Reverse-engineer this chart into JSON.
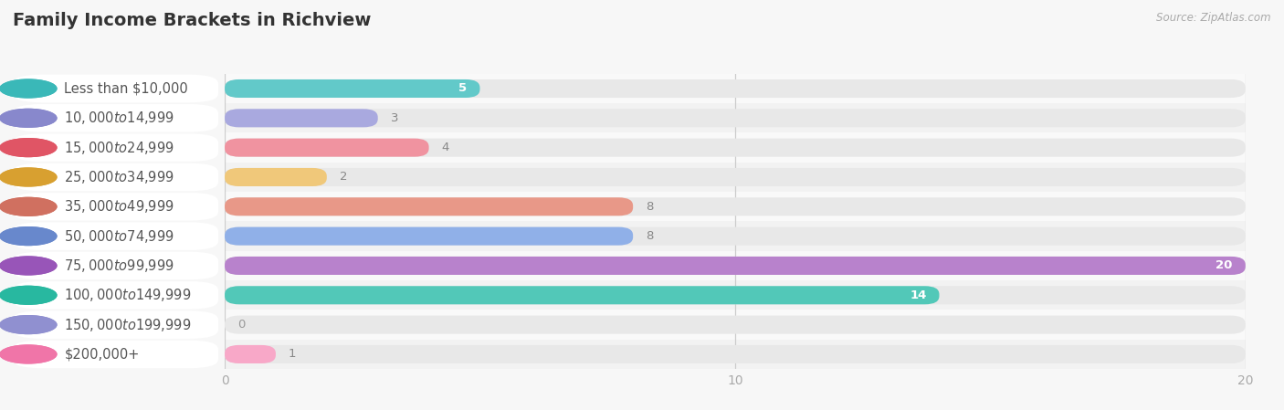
{
  "title": "Family Income Brackets in Richview",
  "source": "Source: ZipAtlas.com",
  "categories": [
    "Less than $10,000",
    "$10,000 to $14,999",
    "$15,000 to $24,999",
    "$25,000 to $34,999",
    "$35,000 to $49,999",
    "$50,000 to $74,999",
    "$75,000 to $99,999",
    "$100,000 to $149,999",
    "$150,000 to $199,999",
    "$200,000+"
  ],
  "values": [
    5,
    3,
    4,
    2,
    8,
    8,
    20,
    14,
    0,
    1
  ],
  "bar_colors": [
    "#62c9c9",
    "#a9a9df",
    "#f093a0",
    "#f0c87a",
    "#e89888",
    "#90b0e8",
    "#b882cc",
    "#52c8b8",
    "#b0b0e8",
    "#f8a8c8"
  ],
  "dot_colors": [
    "#3ab8b8",
    "#8888cc",
    "#e05565",
    "#d8a030",
    "#d07060",
    "#6888cc",
    "#9855b8",
    "#28b8a0",
    "#9090d0",
    "#f075a8"
  ],
  "value_label_inside": [
    true,
    false,
    false,
    false,
    false,
    false,
    true,
    true,
    false,
    false
  ],
  "xlim": [
    0,
    20
  ],
  "xticks": [
    0,
    10,
    20
  ],
  "bar_bg_color": "#ececec",
  "row_bg_colors": [
    "#f9f9f9",
    "#f2f2f2"
  ],
  "background_color": "#f7f7f7",
  "title_fontsize": 14,
  "label_fontsize": 10.5,
  "value_fontsize": 9.5
}
